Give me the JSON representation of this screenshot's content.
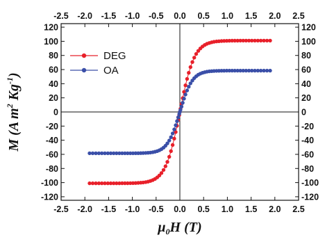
{
  "chart_data": {
    "type": "scatter",
    "xlabel": {
      "base": "μ",
      "sub": "0",
      "rest": "H (T)"
    },
    "ylabel": {
      "main": "M (A m",
      "sup1": "2",
      "mid": " Kg",
      "sup2": "-1",
      "end": ")"
    },
    "xlim": [
      -2.5,
      2.5
    ],
    "ylim": [
      -125,
      125
    ],
    "x_ticks": [
      "-2.5",
      "-2.0",
      "-1.5",
      "-1.0",
      "-0.5",
      "0.0",
      "0.5",
      "1.0",
      "1.5",
      "2.0",
      "2.5"
    ],
    "x_tick_values": [
      -2.5,
      -2.0,
      -1.5,
      -1.0,
      -0.5,
      0.0,
      0.5,
      1.0,
      1.5,
      2.0,
      2.5
    ],
    "y_ticks": [
      "-120",
      "-100",
      "-80",
      "-60",
      "-40",
      "-20",
      "0",
      "20",
      "40",
      "60",
      "80",
      "100",
      "120"
    ],
    "y_tick_values": [
      -120,
      -100,
      -80,
      -60,
      -40,
      -20,
      0,
      20,
      40,
      60,
      80,
      100,
      120
    ],
    "legend_position": "top-left",
    "series": [
      {
        "name": "DEG",
        "color": "#e8202a",
        "ms": 101,
        "k": 3.3,
        "xmax": 1.9
      },
      {
        "name": "OA",
        "color": "#3a4fa8",
        "ms": 58.5,
        "k": 3.8,
        "xmax": 1.9
      }
    ]
  }
}
